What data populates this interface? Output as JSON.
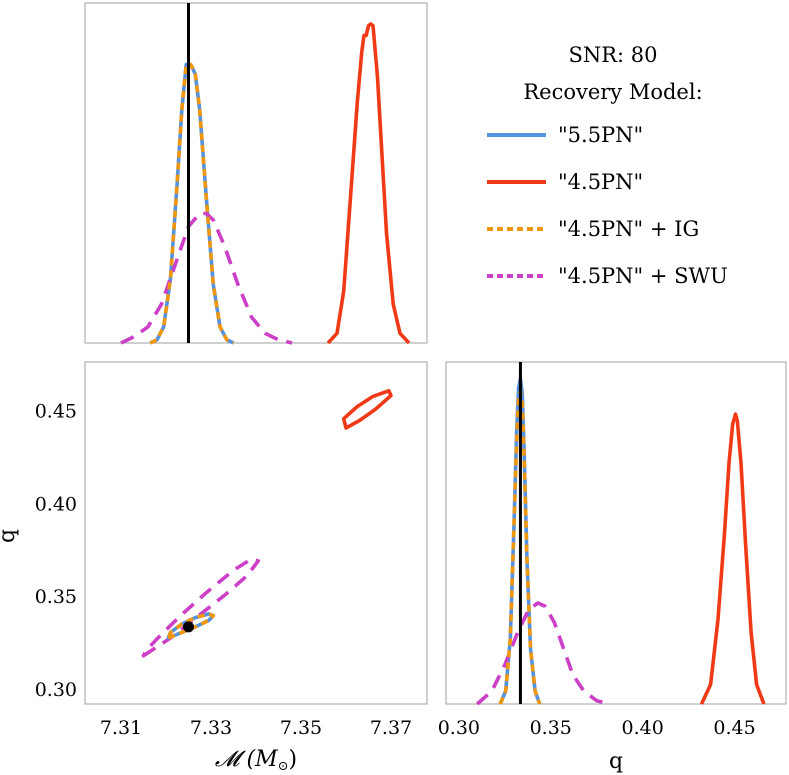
{
  "chart_data": [
    {
      "id": "mc-marginal",
      "type": "line",
      "title": "",
      "xlim": [
        7.302,
        7.378
      ],
      "ylim": [
        0,
        1.05
      ],
      "injected_value": 7.325,
      "series": [
        {
          "name": "\"5.5PN\"",
          "color": "#5592e0",
          "dash": "solid",
          "x": [
            7.3165,
            7.318,
            7.3195,
            7.321,
            7.3225,
            7.3235,
            7.3245,
            7.325,
            7.3255,
            7.3265,
            7.3275,
            7.329,
            7.3305,
            7.332,
            7.3335,
            7.335
          ],
          "y": [
            0,
            0.01,
            0.05,
            0.2,
            0.5,
            0.72,
            0.86,
            0.86,
            0.86,
            0.83,
            0.72,
            0.44,
            0.18,
            0.05,
            0.01,
            0
          ]
        },
        {
          "name": "\"4.5PN\"",
          "color": "#f03a17",
          "dash": "solid",
          "x": [
            7.356,
            7.358,
            7.3595,
            7.361,
            7.3625,
            7.3635,
            7.364,
            7.3645,
            7.365,
            7.3655,
            7.366,
            7.3665,
            7.367,
            7.368,
            7.369,
            7.3705,
            7.372,
            7.374
          ],
          "y": [
            0,
            0.03,
            0.16,
            0.45,
            0.74,
            0.9,
            0.95,
            0.95,
            0.98,
            0.985,
            0.98,
            0.9,
            0.82,
            0.58,
            0.34,
            0.12,
            0.03,
            0
          ]
        },
        {
          "name": "\"4.5PN\" + IG",
          "color": "#f0960a",
          "dash": "short",
          "x": [
            7.3165,
            7.318,
            7.3195,
            7.321,
            7.3225,
            7.3235,
            7.3245,
            7.325,
            7.3255,
            7.3265,
            7.3275,
            7.329,
            7.3305,
            7.332,
            7.3335,
            7.335
          ],
          "y": [
            0,
            0.01,
            0.05,
            0.2,
            0.5,
            0.72,
            0.86,
            0.86,
            0.86,
            0.83,
            0.72,
            0.44,
            0.18,
            0.05,
            0.01,
            0
          ]
        },
        {
          "name": "\"4.5PN\" + SWU",
          "color": "#cc3fc7",
          "dash": "long",
          "x": [
            7.31,
            7.313,
            7.316,
            7.319,
            7.322,
            7.325,
            7.3275,
            7.329,
            7.3305,
            7.333,
            7.336,
            7.339,
            7.342,
            7.345,
            7.348
          ],
          "y": [
            0,
            0.02,
            0.05,
            0.12,
            0.24,
            0.36,
            0.4,
            0.4,
            0.38,
            0.3,
            0.18,
            0.08,
            0.03,
            0.01,
            0
          ]
        }
      ]
    },
    {
      "id": "joint",
      "type": "contour",
      "xlabel": "𝓜 (M",
      "xlabel_sub": "⊙",
      "xlabel_close": ")",
      "ylabel": "q",
      "xlim": [
        7.302,
        7.378
      ],
      "ylim": [
        0.292,
        0.476
      ],
      "xticks": [
        7.31,
        7.33,
        7.35,
        7.37
      ],
      "xtick_labels": [
        "7.31",
        "7.33",
        "7.35",
        "7.37"
      ],
      "yticks": [
        0.3,
        0.35,
        0.4,
        0.45
      ],
      "ytick_labels": [
        "0.30",
        "0.35",
        "0.40",
        "0.45"
      ],
      "injected_point": [
        7.325,
        0.3335
      ],
      "contours": [
        {
          "name": "\"4.5PN\" + SWU",
          "color": "#cc3fc7",
          "dash": "long",
          "x": [
            7.315,
            7.321,
            7.327,
            7.333,
            7.338,
            7.3405,
            7.339,
            7.335,
            7.329,
            7.323,
            7.318,
            7.3155,
            7.315
          ],
          "y": [
            0.318,
            0.3275,
            0.339,
            0.3505,
            0.361,
            0.369,
            0.37,
            0.364,
            0.352,
            0.339,
            0.327,
            0.3205,
            0.318
          ]
        },
        {
          "name": "\"5.5PN\"",
          "color": "#5592e0",
          "dash": "solid",
          "x": [
            7.3205,
            7.3235,
            7.3265,
            7.3295,
            7.3305,
            7.3295,
            7.3265,
            7.3235,
            7.321,
            7.3205
          ],
          "y": [
            0.3275,
            0.3305,
            0.3335,
            0.337,
            0.3395,
            0.3405,
            0.3385,
            0.335,
            0.3305,
            0.3275
          ]
        },
        {
          "name": "\"4.5PN\" + IG",
          "color": "#f0960a",
          "dash": "short",
          "x": [
            7.3205,
            7.3235,
            7.3265,
            7.3295,
            7.3305,
            7.3295,
            7.3265,
            7.3235,
            7.321,
            7.3205
          ],
          "y": [
            0.3275,
            0.3305,
            0.3335,
            0.337,
            0.3395,
            0.3405,
            0.3385,
            0.335,
            0.3305,
            0.3275
          ]
        },
        {
          "name": "\"4.5PN\"",
          "color": "#f03a17",
          "dash": "solid",
          "x": [
            7.36,
            7.363,
            7.3665,
            7.37,
            7.3695,
            7.366,
            7.3625,
            7.3595,
            7.36
          ],
          "y": [
            0.4405,
            0.4445,
            0.4505,
            0.458,
            0.4605,
            0.4575,
            0.452,
            0.4455,
            0.4405
          ]
        }
      ]
    },
    {
      "id": "q-marginal",
      "type": "line",
      "xlabel": "q",
      "xlim": [
        0.293,
        0.478
      ],
      "ylim": [
        0,
        1.05
      ],
      "xticks": [
        0.3,
        0.35,
        0.4,
        0.45
      ],
      "xtick_labels": [
        "0.30",
        "0.35",
        "0.40",
        "0.45"
      ],
      "injected_value": 0.3335,
      "series": [
        {
          "name": "\"5.5PN\"",
          "color": "#5592e0",
          "dash": "solid",
          "x": [
            0.3225,
            0.3255,
            0.328,
            0.33,
            0.3315,
            0.3325,
            0.3335,
            0.3345,
            0.3355,
            0.337,
            0.339,
            0.3415,
            0.344
          ],
          "y": [
            0,
            0.04,
            0.2,
            0.55,
            0.85,
            0.97,
            1.0,
            0.95,
            0.78,
            0.45,
            0.17,
            0.04,
            0
          ]
        },
        {
          "name": "\"4.5PN\"",
          "color": "#f03a17",
          "dash": "solid",
          "x": [
            0.432,
            0.437,
            0.441,
            0.4445,
            0.447,
            0.449,
            0.4505,
            0.4515,
            0.4535,
            0.456,
            0.459,
            0.462,
            0.466
          ],
          "y": [
            0,
            0.06,
            0.26,
            0.52,
            0.74,
            0.86,
            0.89,
            0.87,
            0.74,
            0.49,
            0.22,
            0.06,
            0
          ]
        },
        {
          "name": "\"4.5PN\" + IG",
          "color": "#f0960a",
          "dash": "short",
          "x": [
            0.3225,
            0.3255,
            0.328,
            0.33,
            0.3315,
            0.3325,
            0.3335,
            0.3345,
            0.3355,
            0.337,
            0.339,
            0.3415,
            0.344
          ],
          "y": [
            0,
            0.04,
            0.2,
            0.55,
            0.82,
            0.94,
            0.96,
            0.92,
            0.76,
            0.45,
            0.17,
            0.04,
            0
          ]
        },
        {
          "name": "\"4.5PN\" + SWU",
          "color": "#cc3fc7",
          "dash": "long",
          "x": [
            0.31,
            0.318,
            0.325,
            0.332,
            0.338,
            0.343,
            0.347,
            0.352,
            0.357,
            0.362,
            0.368,
            0.375,
            0.382
          ],
          "y": [
            0,
            0.04,
            0.12,
            0.22,
            0.29,
            0.31,
            0.3,
            0.25,
            0.17,
            0.09,
            0.04,
            0.01,
            0
          ]
        }
      ]
    }
  ],
  "legend": {
    "snr_label": "SNR: 80",
    "model_label": "Recovery Model:",
    "entries": [
      {
        "label": "\"5.5PN\"",
        "color": "#5592e0",
        "dash": "solid"
      },
      {
        "label": "\"4.5PN\"",
        "color": "#f03a17",
        "dash": "solid"
      },
      {
        "label": "\"4.5PN\" + IG",
        "color": "#f0960a",
        "dash": "short"
      },
      {
        "label": "\"4.5PN\" + SWU",
        "color": "#cc3fc7",
        "dash": "long"
      }
    ]
  }
}
